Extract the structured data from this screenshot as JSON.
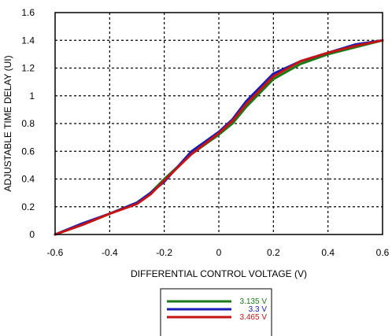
{
  "chart_data": {
    "type": "line",
    "xlabel": "DIFFERENTIAL CONTROL VOLTAGE (V)",
    "ylabel": "ADJUSTABLE TIME DELAY (UI)",
    "xlim": [
      -0.6,
      0.6
    ],
    "ylim": [
      0,
      1.6
    ],
    "xticks": [
      "-0.6",
      "-0.4",
      "-0.2",
      "0",
      "0.2",
      "0.4",
      "0.6"
    ],
    "yticks": [
      "0",
      "0.2",
      "0.4",
      "0.6",
      "0.8",
      "1",
      "1.2",
      "1.4",
      "1.6"
    ],
    "grid": true,
    "legend_position": "bottom-center",
    "series": [
      {
        "name": "3.135 V",
        "color": "#1a7a1a",
        "points": [
          [
            -0.6,
            0.0
          ],
          [
            -0.5,
            0.07
          ],
          [
            -0.4,
            0.15
          ],
          [
            -0.3,
            0.23
          ],
          [
            -0.25,
            0.3
          ],
          [
            -0.2,
            0.4
          ],
          [
            -0.1,
            0.58
          ],
          [
            0.0,
            0.72
          ],
          [
            0.05,
            0.8
          ],
          [
            0.1,
            0.92
          ],
          [
            0.2,
            1.12
          ],
          [
            0.3,
            1.23
          ],
          [
            0.4,
            1.3
          ],
          [
            0.5,
            1.35
          ],
          [
            0.6,
            1.4
          ]
        ]
      },
      {
        "name": "3.3 V",
        "color": "#1a1ab4",
        "points": [
          [
            -0.6,
            0.0
          ],
          [
            -0.5,
            0.08
          ],
          [
            -0.4,
            0.15
          ],
          [
            -0.3,
            0.23
          ],
          [
            -0.25,
            0.3
          ],
          [
            -0.2,
            0.38
          ],
          [
            -0.1,
            0.6
          ],
          [
            0.0,
            0.74
          ],
          [
            0.05,
            0.83
          ],
          [
            0.1,
            0.96
          ],
          [
            0.2,
            1.16
          ],
          [
            0.3,
            1.25
          ],
          [
            0.4,
            1.31
          ],
          [
            0.5,
            1.37
          ],
          [
            0.6,
            1.4
          ]
        ]
      },
      {
        "name": "3.465 V",
        "color": "#c41414",
        "points": [
          [
            -0.6,
            0.0
          ],
          [
            -0.5,
            0.07
          ],
          [
            -0.4,
            0.15
          ],
          [
            -0.3,
            0.22
          ],
          [
            -0.25,
            0.29
          ],
          [
            -0.2,
            0.39
          ],
          [
            -0.1,
            0.58
          ],
          [
            0.0,
            0.73
          ],
          [
            0.05,
            0.82
          ],
          [
            0.1,
            0.94
          ],
          [
            0.2,
            1.14
          ],
          [
            0.3,
            1.25
          ],
          [
            0.4,
            1.31
          ],
          [
            0.5,
            1.36
          ],
          [
            0.6,
            1.4
          ]
        ]
      }
    ]
  }
}
